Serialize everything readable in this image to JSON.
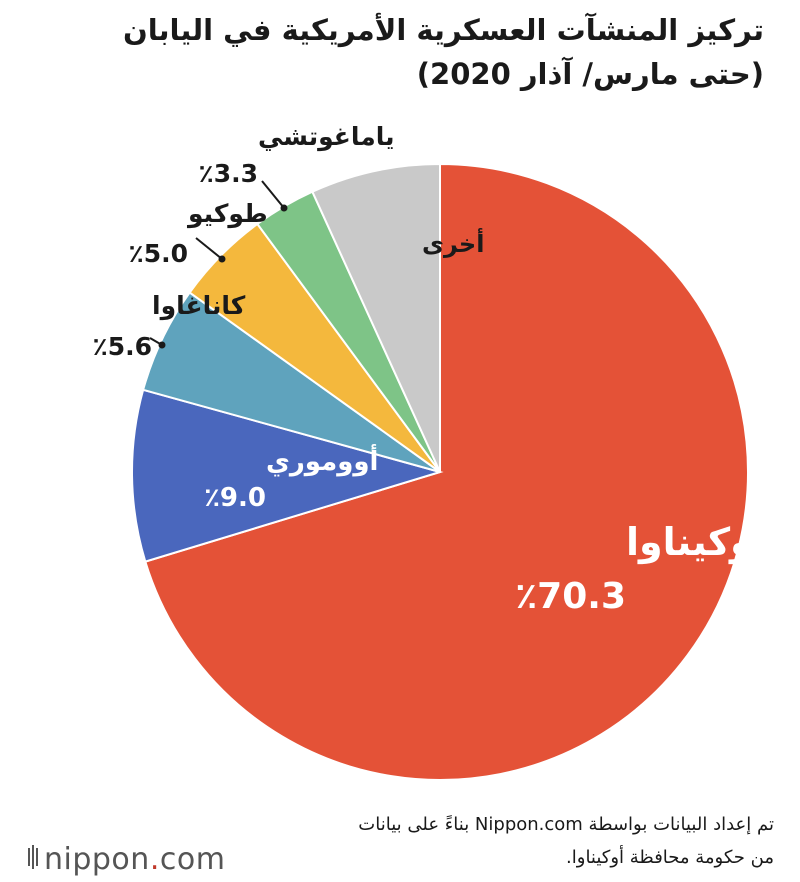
{
  "title": {
    "line1": "تركيز المنشآت العسكرية الأمريكية في اليابان",
    "line2": "(حتى مارس/ آذار 2020)"
  },
  "chart_data": {
    "type": "pie",
    "title": "تركيز المنشآت العسكرية الأمريكية في اليابان (حتى مارس/ آذار 2020)",
    "slices": [
      {
        "label": "أوكيناوا",
        "value": 70.3,
        "value_label": "٪70.3",
        "color": "#e45237"
      },
      {
        "label": "أووموري",
        "value": 9.0,
        "value_label": "٪9.0",
        "color": "#4a67bd"
      },
      {
        "label": "كاناغاوا",
        "value": 5.6,
        "value_label": "٪5.6",
        "color": "#5fa3bd"
      },
      {
        "label": "طوكيو",
        "value": 5.0,
        "value_label": "٪5.0",
        "color": "#f4b83d"
      },
      {
        "label": "ياماغوتشي",
        "value": 3.3,
        "value_label": "٪3.3",
        "color": "#7ec487"
      },
      {
        "label": "أخرى",
        "value": 6.8,
        "value_label": "",
        "color": "#c9c9c9"
      }
    ],
    "start": "top",
    "direction": "clockwise"
  },
  "source": {
    "line1": "تم إعداد البيانات بواسطة Nippon.com بناءً على بيانات",
    "line2": "من حكومة محافظة أوكيناوا."
  },
  "logo": {
    "brand": "nippon",
    "dot": ".",
    "suffix": "com",
    "icon": "bamboo-bars-icon"
  }
}
